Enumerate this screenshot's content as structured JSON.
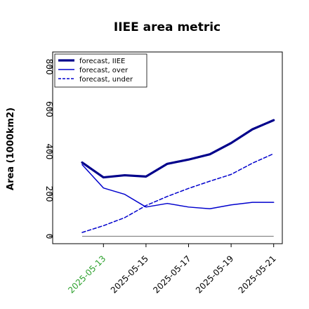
{
  "chart_data": {
    "type": "line",
    "title": "IIEE area metric",
    "xlabel": "",
    "ylabel": "Area (1000km2)",
    "x": [
      "2025-05-12",
      "2025-05-13",
      "2025-05-14",
      "2025-05-15",
      "2025-05-16",
      "2025-05-17",
      "2025-05-18",
      "2025-05-19",
      "2025-05-20",
      "2025-05-21"
    ],
    "x_tick_labels": [
      "2025-05-13",
      "2025-05-15",
      "2025-05-17",
      "2025-05-19",
      "2025-05-21"
    ],
    "x_tick_colors": [
      "#2ca02c",
      "#000000",
      "#000000",
      "#000000",
      "#000000"
    ],
    "ylim": [
      -35,
      870
    ],
    "y_ticks": [
      0,
      200,
      400,
      600,
      800
    ],
    "grid": false,
    "legend_position": "top-left",
    "series": [
      {
        "name": "forecast, IIEE",
        "style": "solid-thick",
        "color": "#00008b",
        "values": [
          348,
          278,
          288,
          282,
          342,
          362,
          387,
          440,
          505,
          548
        ]
      },
      {
        "name": "forecast, over",
        "style": "solid",
        "color": "#0000cd",
        "values": [
          338,
          228,
          198,
          138,
          155,
          138,
          130,
          148,
          160,
          160
        ]
      },
      {
        "name": "forecast, under",
        "style": "dashed",
        "color": "#0000cd",
        "values": [
          18,
          50,
          88,
          145,
          188,
          226,
          260,
          292,
          345,
          390
        ]
      }
    ],
    "baseline": {
      "value": 0,
      "color": "#808080"
    }
  }
}
